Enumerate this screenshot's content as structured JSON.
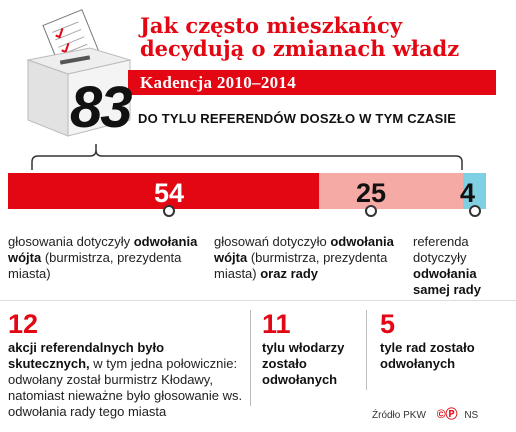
{
  "header": {
    "title": "Jak często mieszkańcy decydują o zmianach władz",
    "period": "Kadencja 2010–2014",
    "total": "83",
    "total_caption": "DO TYLU REFERENDÓW DOSZŁO W TYM CZASIE"
  },
  "chart_data": {
    "type": "bar",
    "orientation": "horizontal-stacked",
    "total": 83,
    "categories": [
      "głosowania dotyczyły odwołania wójta (burmistrza, prezydenta miasta)",
      "głosowań dotyczyło odwołania wójta (burmistrza, prezydenta miasta) oraz rady",
      "referenda dotyczyły odwołania samej rady"
    ],
    "values": [
      54,
      25,
      4
    ],
    "colors": [
      "#e30613",
      "#f5aaa6",
      "#7fd0e3"
    ]
  },
  "segments": [
    {
      "value": "54",
      "desc_pre": "głosowania dotyczyły ",
      "desc_bold": "odwołania wójta",
      "desc_post": " (burmistrza, prezydenta miasta)",
      "desc_bold2": ""
    },
    {
      "value": "25",
      "desc_pre": "głosowań dotyczyło ",
      "desc_bold": "odwołania wójta",
      "desc_post": " (burmistrza, prezydenta miasta) ",
      "desc_bold2": "oraz rady"
    },
    {
      "value": "4",
      "desc_pre": "referenda dotyczyły ",
      "desc_bold": "odwołania samej rady",
      "desc_post": "",
      "desc_bold2": ""
    }
  ],
  "stats": [
    {
      "number": "12",
      "bold": "akcji referendalnych było skutecznych,",
      "text": " w tym jedna połowicznie: odwołany został burmistrz Kłodawy, natomiast nieważne było głosowanie ws. odwołania rady tego miasta"
    },
    {
      "number": "11",
      "bold": "tylu włodarzy zostało odwołanych",
      "text": ""
    },
    {
      "number": "5",
      "bold": "tyle rad zostało odwołanych",
      "text": ""
    }
  ],
  "footer": {
    "source": "Źródło PKW",
    "credit": "NS"
  },
  "colors": {
    "accent": "#e30613",
    "pink": "#f5aaa6",
    "cyan": "#7fd0e3"
  }
}
